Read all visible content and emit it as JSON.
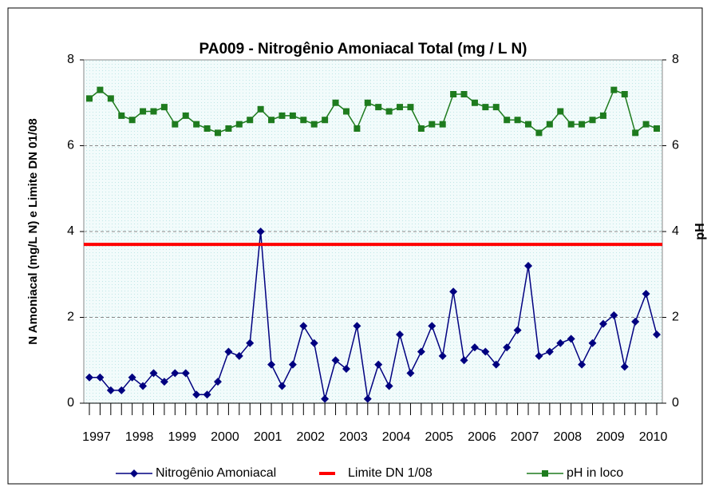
{
  "chart_data": {
    "type": "line",
    "title": "PA009 - Nitrogênio Amoniacal Total (mg / L N)",
    "y_label": "N Amoniacal (mg/L N) e Limite DN 01/08",
    "y2_label": "pH",
    "categories": [
      "1997",
      null,
      null,
      null,
      "1998",
      null,
      null,
      null,
      "1999",
      null,
      null,
      null,
      "2000",
      null,
      null,
      null,
      "2001",
      null,
      null,
      null,
      "2002",
      null,
      null,
      null,
      "2003",
      null,
      null,
      null,
      "2004",
      null,
      null,
      null,
      "2005",
      null,
      null,
      null,
      "2006",
      null,
      null,
      null,
      "2007",
      null,
      null,
      null,
      "2008",
      null,
      null,
      null,
      "2009",
      null,
      null,
      null,
      "2010",
      null
    ],
    "series": [
      {
        "name": "Nitrogênio Amoniacal",
        "color": "#000080",
        "marker": "diamond",
        "values": [
          0.6,
          0.6,
          0.3,
          0.3,
          0.6,
          0.4,
          0.7,
          0.5,
          0.7,
          0.7,
          0.2,
          0.2,
          0.5,
          1.2,
          1.1,
          1.4,
          4.0,
          0.9,
          0.4,
          0.9,
          1.8,
          1.4,
          0.1,
          1.0,
          0.8,
          1.8,
          0.1,
          0.9,
          0.4,
          1.6,
          0.7,
          1.2,
          1.8,
          1.1,
          2.6,
          1.0,
          1.3,
          1.2,
          0.9,
          1.3,
          1.7,
          3.2,
          1.1,
          1.2,
          1.4,
          1.5,
          0.9,
          1.4,
          1.85,
          2.05,
          0.85,
          1.9,
          2.55,
          1.6
        ]
      },
      {
        "name": "Limite DN 1/08",
        "color": "#ff0000",
        "marker": "none",
        "values": [
          3.7,
          3.7,
          3.7,
          3.7,
          3.7,
          3.7,
          3.7,
          3.7,
          3.7,
          3.7,
          3.7,
          3.7,
          3.7,
          3.7,
          3.7,
          3.7,
          3.7,
          3.7,
          3.7,
          3.7,
          3.7,
          3.7,
          3.7,
          3.7,
          3.7,
          3.7,
          3.7,
          3.7,
          3.7,
          3.7,
          3.7,
          3.7,
          3.7,
          3.7,
          3.7,
          3.7,
          3.7,
          3.7,
          3.7,
          3.7,
          3.7,
          3.7,
          3.7,
          3.7,
          3.7,
          3.7,
          3.7,
          3.7,
          3.7,
          3.7,
          3.7,
          3.7,
          3.7,
          3.7
        ]
      },
      {
        "name": "pH in loco",
        "color": "#1e7b1e",
        "marker": "square",
        "axis": "y2",
        "values": [
          7.1,
          7.3,
          7.1,
          6.7,
          6.6,
          6.8,
          6.8,
          6.9,
          6.5,
          6.7,
          6.5,
          6.4,
          6.3,
          6.4,
          6.5,
          6.6,
          6.85,
          6.6,
          6.7,
          6.7,
          6.6,
          6.5,
          6.6,
          7.0,
          6.8,
          6.4,
          7.0,
          6.9,
          6.8,
          6.9,
          6.9,
          6.4,
          6.5,
          6.5,
          7.2,
          7.2,
          7.0,
          6.9,
          6.9,
          6.6,
          6.6,
          6.5,
          6.3,
          6.5,
          6.8,
          6.5,
          6.5,
          6.6,
          6.7,
          7.3,
          7.2,
          6.3,
          6.5,
          6.4
        ]
      }
    ],
    "ylim": [
      0,
      8
    ],
    "yticks": [
      0,
      2,
      4,
      6,
      8
    ],
    "y2lim": [
      0,
      8
    ],
    "y2ticks": [
      0,
      2,
      4,
      6,
      8
    ],
    "grid": true,
    "legend": "bottom"
  }
}
